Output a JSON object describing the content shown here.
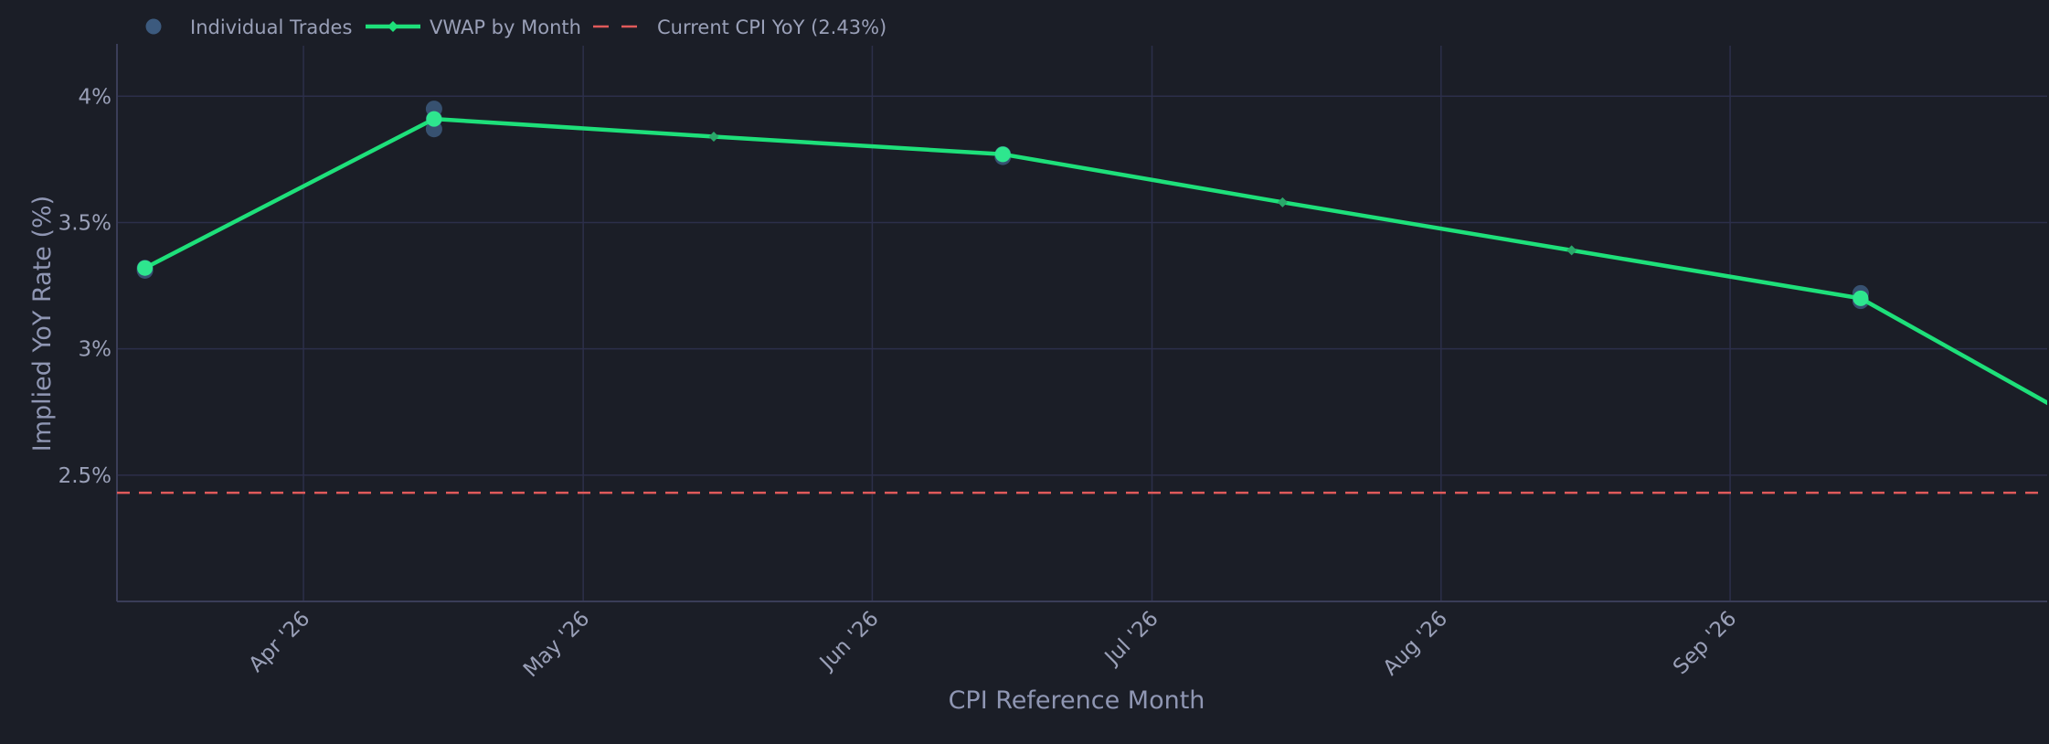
{
  "chart_data": {
    "type": "line",
    "xlabel": "CPI Reference Month",
    "ylabel": "Implied YoY Rate (%)",
    "x_ticks": [
      "2026-04-01",
      "2026-05-01",
      "2026-06-01",
      "2026-07-01",
      "2026-08-01",
      "2026-09-01"
    ],
    "x_tick_labels": [
      "Apr '26",
      "May '26",
      "Jun '26",
      "Jul '26",
      "Aug '26",
      "Sep '26"
    ],
    "y_ticks": [
      2.5,
      3,
      3.5,
      4
    ],
    "y_tick_labels": [
      "2.5%",
      "3%",
      "3.5%",
      "4%"
    ],
    "xlim": [
      "2026-03-12",
      "2026-10-05"
    ],
    "ylim": [
      2.0,
      4.2
    ],
    "grid": true,
    "legend": {
      "placement": "top-left",
      "entries": [
        {
          "name": "Individual Trades",
          "marker": "circle",
          "color": "#3c5a7e"
        },
        {
          "name": "VWAP by Month",
          "marker": "line-diamond",
          "color": "#1ee07a"
        },
        {
          "name": "Current CPI YoY (2.43%)",
          "marker": "dashed-line",
          "color": "#e05a5a"
        }
      ]
    },
    "series": [
      {
        "name": "Individual Trades",
        "type": "scatter",
        "color": "#3c5a7e",
        "points": [
          {
            "x": "2026-03-15",
            "y": 3.32
          },
          {
            "x": "2026-03-15",
            "y": 3.31
          },
          {
            "x": "2026-04-15",
            "y": 3.95
          },
          {
            "x": "2026-04-15",
            "y": 3.91
          },
          {
            "x": "2026-04-15",
            "y": 3.87
          },
          {
            "x": "2026-06-15",
            "y": 3.77
          },
          {
            "x": "2026-06-15",
            "y": 3.76
          },
          {
            "x": "2026-09-15",
            "y": 3.22
          },
          {
            "x": "2026-09-15",
            "y": 3.19
          }
        ]
      },
      {
        "name": "VWAP by Month",
        "type": "line",
        "color": "#1ee07a",
        "points": [
          {
            "x": "2026-03-15",
            "y": 3.32
          },
          {
            "x": "2026-04-15",
            "y": 3.91
          },
          {
            "x": "2026-05-15",
            "y": 3.84
          },
          {
            "x": "2026-06-15",
            "y": 3.77
          },
          {
            "x": "2026-07-15",
            "y": 3.58
          },
          {
            "x": "2026-08-15",
            "y": 3.39
          },
          {
            "x": "2026-09-15",
            "y": 3.2
          },
          {
            "x": "2026-10-15",
            "y": 2.58
          }
        ]
      },
      {
        "name": "Current CPI YoY (2.43%)",
        "type": "hline",
        "color": "#e05a5a",
        "y": 2.43
      }
    ]
  },
  "colors": {
    "background": "#1b1e27",
    "grid": "#2c2f4a",
    "axis_line": "#3a3d58",
    "text": "#9aa0b8"
  }
}
